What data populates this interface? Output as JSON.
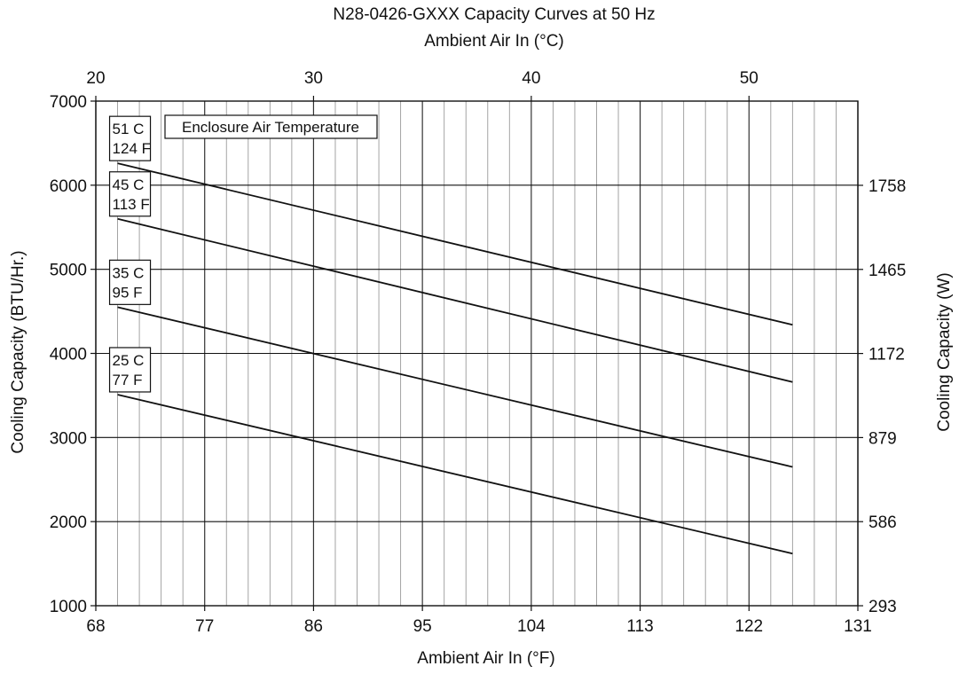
{
  "chart_data": {
    "type": "line",
    "title": "N28-0426-GXXX Capacity Curves at 50 Hz",
    "x_top_label": "Ambient Air In (°C)",
    "xlabel": "Ambient Air In (°F)",
    "ylabel": "Cooling Capacity (BTU/Hr.)",
    "y2label": "Cooling Capacity (W)",
    "legend_title": "Enclosure Air Temperature",
    "xlim": [
      68,
      131
    ],
    "ylim": [
      1000,
      7000
    ],
    "x_ticks": [
      "68",
      "77",
      "86",
      "95",
      "104",
      "113",
      "122",
      "131"
    ],
    "x_top_ticks": [
      "20",
      "30",
      "40",
      "50"
    ],
    "y_ticks": [
      "1000",
      "2000",
      "3000",
      "4000",
      "5000",
      "6000",
      "7000"
    ],
    "y2_ticks": [
      "293",
      "586",
      "879",
      "1172",
      "1465",
      "1758"
    ],
    "grid": true,
    "series": [
      {
        "name": "51 C 124 F",
        "label_lines": [
          "51 C",
          "124 F"
        ],
        "x": [
          69.8,
          125.6
        ],
        "y": [
          6260,
          4340
        ]
      },
      {
        "name": "45 C 113 F",
        "label_lines": [
          "45 C",
          "113 F"
        ],
        "x": [
          69.8,
          125.6
        ],
        "y": [
          5600,
          3660
        ]
      },
      {
        "name": "35 C 95 F",
        "label_lines": [
          "35 C",
          "95 F"
        ],
        "x": [
          69.8,
          125.6
        ],
        "y": [
          4550,
          2650
        ]
      },
      {
        "name": "25 C 77 F",
        "label_lines": [
          "25 C",
          "77 F"
        ],
        "x": [
          69.8,
          125.6
        ],
        "y": [
          3510,
          1620
        ]
      }
    ]
  }
}
